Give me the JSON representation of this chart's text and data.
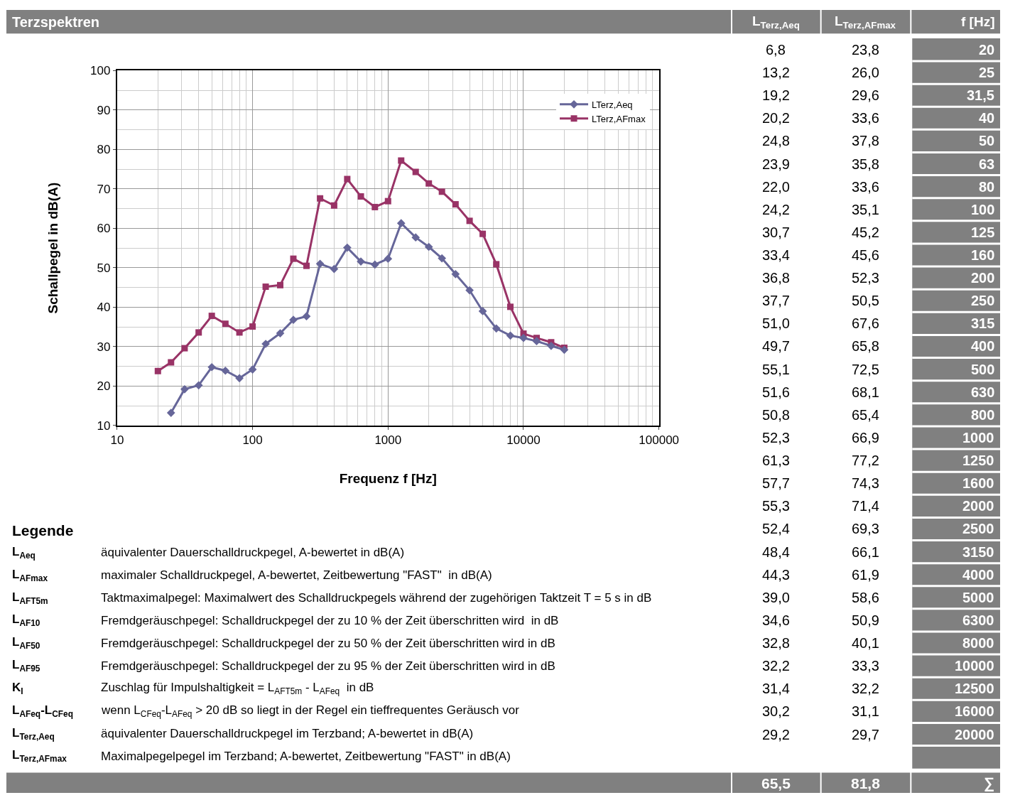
{
  "chart_data": {
    "type": "line",
    "title": "Terzspektren",
    "xlabel": "Frequenz f [Hz]",
    "ylabel": "Schallpegel in dB(A)",
    "x": [
      20,
      25,
      31.5,
      40,
      50,
      63,
      80,
      100,
      125,
      160,
      200,
      250,
      315,
      400,
      500,
      630,
      800,
      1000,
      1250,
      1600,
      2000,
      2500,
      3150,
      4000,
      5000,
      6300,
      8000,
      10000,
      12500,
      16000,
      20000
    ],
    "series": [
      {
        "name": "LTerz,Aeq",
        "color": "#666699",
        "marker": "diamond",
        "values": [
          null,
          13.2,
          19.2,
          20.2,
          24.8,
          23.9,
          22.0,
          24.2,
          30.7,
          33.4,
          36.8,
          37.7,
          51.0,
          49.7,
          55.1,
          51.6,
          50.8,
          52.3,
          61.3,
          57.7,
          55.3,
          52.4,
          48.4,
          44.3,
          39.0,
          34.6,
          32.8,
          32.2,
          31.4,
          30.2,
          29.2
        ]
      },
      {
        "name": "LTerz,AFmax",
        "color": "#993366",
        "marker": "square",
        "values": [
          23.8,
          26.0,
          29.6,
          33.6,
          37.8,
          35.8,
          33.6,
          35.1,
          45.2,
          45.6,
          52.3,
          50.5,
          67.6,
          65.8,
          72.5,
          68.1,
          65.4,
          66.9,
          77.2,
          74.3,
          71.4,
          69.3,
          66.1,
          61.9,
          58.6,
          50.9,
          40.1,
          33.3,
          32.2,
          31.1,
          29.7
        ]
      }
    ],
    "log": "x",
    "xlim": [
      10,
      100000
    ],
    "xticks": [
      10,
      100,
      1000,
      10000,
      100000
    ],
    "ylim": [
      10,
      100
    ],
    "yticks": [
      10,
      20,
      30,
      40,
      50,
      60,
      70,
      80,
      90,
      100
    ],
    "grid": true,
    "legend": "top right",
    "line_style": "solid",
    "annotations": [
      "Legende",
      "L$_{Aeq}$",
      "äquivalenter Dauerschalldruckpegel, A-bewertet in dB(A)",
      "L$_{AFmax}$",
      "maximaler Schalldruckpegel, A-bewertet, Zeitbewertung \"FAST\"  in dB(A)",
      "L$_{AFT5m}$",
      "Taktmaximalpegel: Maximalwert des Schalldruckpegels während der zugehörigen Taktzeit T = 5 s in dB",
      "L$_{AF10}$",
      "Fremdgeräuschpegel: Schalldruckpegel der zu 10 % der Zeit überschritten wird  in dB",
      "L$_{AF50}$",
      "Fremdgeräuschpegel: Schalldruckpegel der zu 50 % der Zeit überschritten wird in dB",
      "L$_{AF95}$",
      "Fremdgeräuschpegel: Schalldruckpegel der zu 95 % der Zeit überschritten wird in dB",
      "K$_{I}$",
      "Zuschlag für Impulshaltigkeit = L$_{AFT5m}$ - L$_{AFeq}$  in dB",
      "L$_{AFeq}$-L$_{CFeq}$",
      "wenn L$_{CFeq}$-L$_{AFeq}$ > 20 dB so liegt in der Regel ein tieffrequentes Geräusch vor",
      "L$_{Terz,Aeq}$",
      "äquivalenter Dauerschalldruckpegel im Terzband; A-bewertet in dB(A)",
      "L$_{Terz,AFmax}$",
      "Maximalpegelpegel im Terzband; A-bewertet, Zeitbewertung \"FAST\" in dB(A)",
      "L$_{Terz,Aeq}$",
      "L$_{Terz,AFmax}$",
      "f [Hz]",
      "65,5",
      "81,8",
      "∑",
      "6,8",
      "13,2",
      "19,2",
      "20,2",
      "24,8",
      "23,9",
      "22,0",
      "24,2",
      "30,7",
      "33,4",
      "36,8",
      "37,7",
      "51,0",
      "49,7",
      "55,1",
      "51,6",
      "50,8",
      "52,3",
      "61,3",
      "57,7",
      "55,3",
      "52,4",
      "48,4",
      "44,3",
      "39,0",
      "34,6",
      "32,8",
      "32,2",
      "31,4",
      "30,2",
      "29,2",
      "23,8",
      "26,0",
      "29,6",
      "33,6",
      "37,8",
      "35,8",
      "33,6",
      "35,1",
      "45,2",
      "45,6",
      "52,3",
      "50,5",
      "67,6",
      "65,8",
      "72,5",
      "68,1",
      "65,4",
      "66,9",
      "77,2",
      "74,3",
      "71,4",
      "69,3",
      "66,1",
      "61,9",
      "58,6",
      "50,9",
      "40,1",
      "33,3",
      "32,2",
      "31,1",
      "29,7",
      "20",
      "25",
      "31,5",
      "40",
      "50",
      "63",
      "80",
      "100",
      "125",
      "160",
      "200",
      "250",
      "315",
      "400",
      "500",
      "630",
      "800",
      "1000",
      "1250",
      "1600",
      "2000",
      "2500",
      "3150",
      "4000",
      "5000",
      "6300",
      "8000",
      "10000",
      "12500",
      "16000",
      "20000"
    ]
  }
}
